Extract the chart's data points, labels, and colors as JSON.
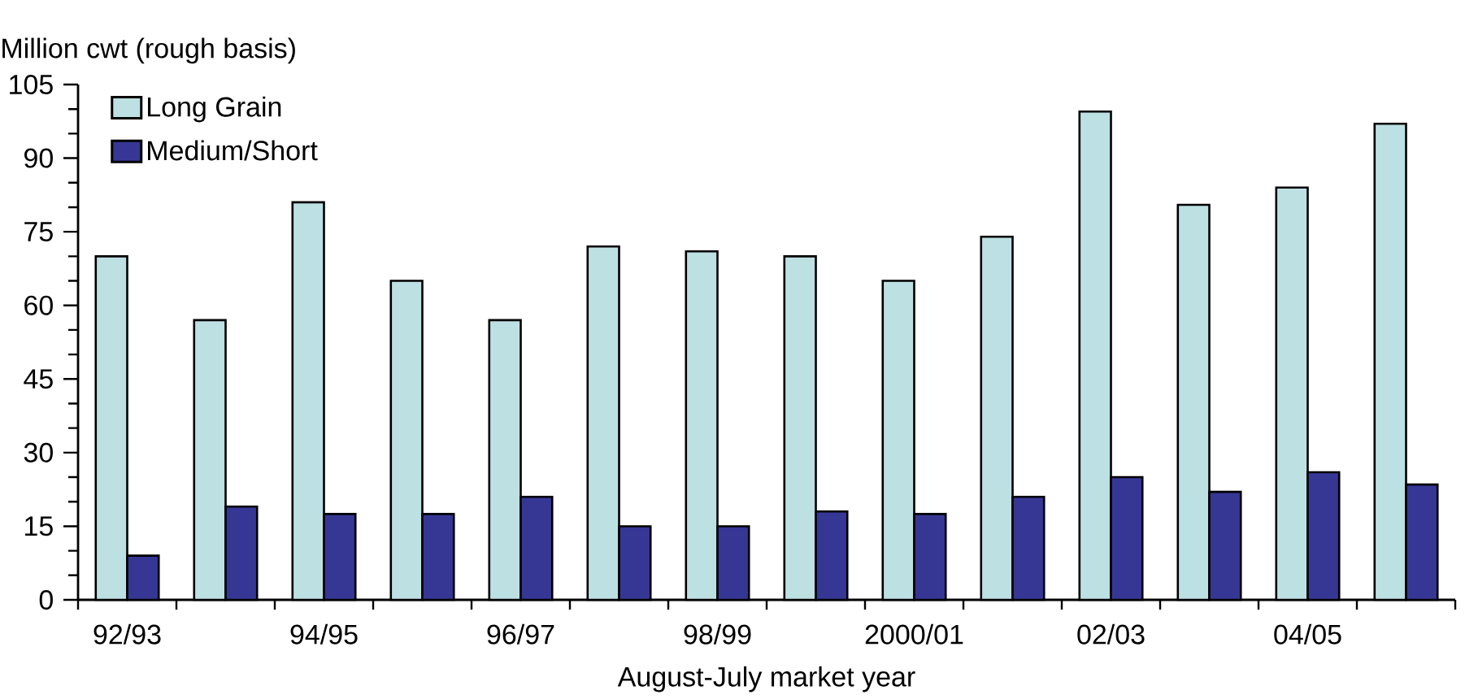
{
  "chart_data": {
    "type": "bar",
    "ylabel": "Million cwt (rough basis)",
    "xlabel": "August-July market year",
    "categories": [
      "92/93",
      null,
      "94/95",
      null,
      "96/97",
      null,
      "98/99",
      null,
      "2000/01",
      null,
      "02/03",
      null,
      "04/05",
      null
    ],
    "series": [
      {
        "name": "Long Grain",
        "color": "#bde0e3",
        "values": [
          70,
          57,
          81,
          65,
          57,
          72,
          71,
          70,
          65,
          74,
          99.5,
          80.5,
          84,
          97
        ]
      },
      {
        "name": "Medium/Short",
        "color": "#363795",
        "values": [
          9,
          19,
          17.5,
          17.5,
          21,
          15,
          15,
          18,
          17.5,
          21,
          25,
          22,
          26,
          23.5
        ]
      }
    ],
    "ylim": [
      0,
      105
    ],
    "yticks": [
      0,
      {
        "value": 5,
        "label": null
      },
      {
        "value": 10,
        "label": null
      },
      15,
      {
        "value": 20,
        "label": null
      },
      {
        "value": 25,
        "label": null
      },
      30,
      {
        "value": 35,
        "label": null
      },
      {
        "value": 40,
        "label": null
      },
      45,
      {
        "value": 50,
        "label": null
      },
      {
        "value": 55,
        "label": null
      },
      60,
      {
        "value": 65,
        "label": null
      },
      {
        "value": 70,
        "label": null
      },
      75,
      {
        "value": 80,
        "label": null
      },
      {
        "value": 85,
        "label": null
      },
      90,
      {
        "value": 95,
        "label": null
      },
      {
        "value": 100,
        "label": null
      },
      105
    ],
    "grid": false,
    "legend": "top left"
  }
}
